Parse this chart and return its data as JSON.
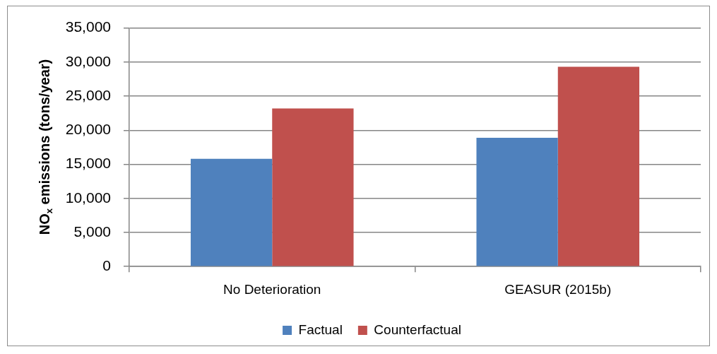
{
  "chart_data": {
    "type": "bar",
    "ylabel": "NO$_{x}$ emissions (tons/year)",
    "categories": [
      "No Deterioration",
      "GEASUR (2015b)"
    ],
    "series": [
      {
        "name": "Factual",
        "color": "#4f81bd",
        "values": [
          15800,
          18900
        ]
      },
      {
        "name": "Counterfactual",
        "color": "#c0504d",
        "values": [
          23200,
          29300
        ]
      }
    ],
    "ylim": [
      0,
      35000
    ],
    "yticks": [
      0,
      {
        "value": 5000,
        "label": "5,000"
      },
      {
        "value": 10000,
        "label": "10,000"
      },
      {
        "value": 15000,
        "label": "15,000"
      },
      {
        "value": 20000,
        "label": "20,000"
      },
      {
        "value": 25000,
        "label": "25,000"
      },
      {
        "value": 30000,
        "label": "30,000"
      },
      {
        "value": 35000,
        "label": "35,000"
      }
    ],
    "grid": "y",
    "legend": "bottom"
  }
}
